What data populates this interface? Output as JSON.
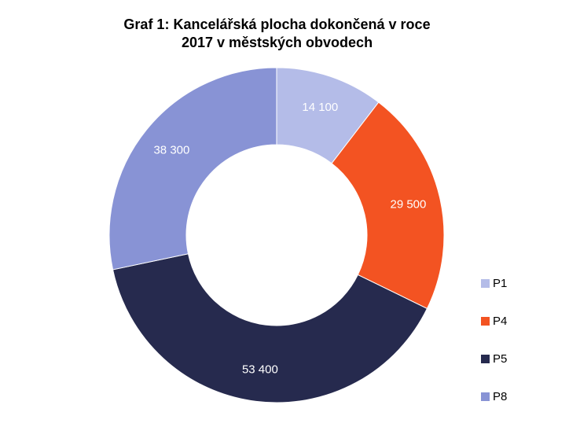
{
  "title_line1": "Graf 1: Kancelářská plocha dokončená v roce",
  "title_line2": "2017 v městských obvodech",
  "chart_data": {
    "type": "pie",
    "donut": true,
    "title": "Graf 1: Kancelářská plocha dokončená v roce 2017 v městských obvodech",
    "categories": [
      "P1",
      "P4",
      "P5",
      "P8"
    ],
    "values": [
      14100,
      29500,
      53400,
      38300
    ],
    "value_labels": [
      "14 100",
      "29 500",
      "53 400",
      "38 300"
    ],
    "colors": [
      "#b4bce8",
      "#f35322",
      "#262a4e",
      "#8893d5"
    ],
    "legend_position": "right"
  }
}
